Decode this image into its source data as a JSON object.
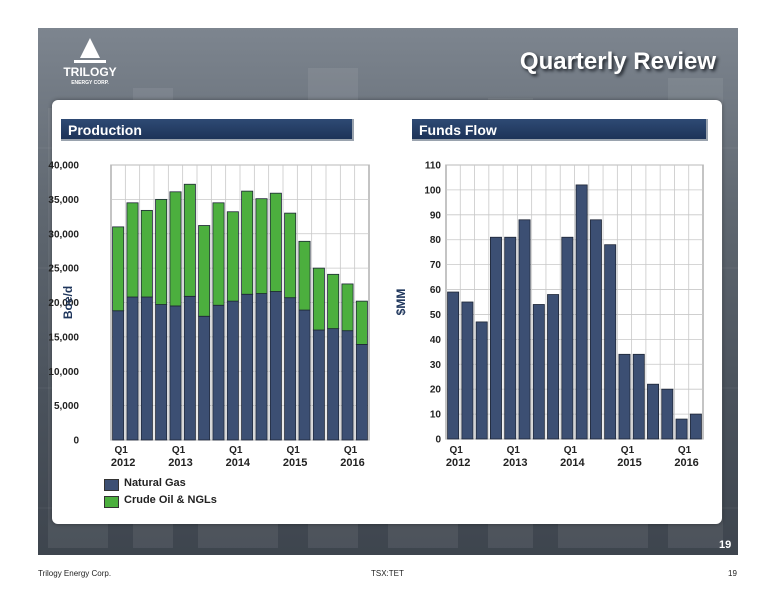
{
  "company": "Trilogy Energy Corp.",
  "logo": {
    "name": "TRILOGY",
    "tagline": "ENERGY CORP."
  },
  "slide_title": "Quarterly Review",
  "slide_number": "19",
  "footer": {
    "left": "Trilogy Energy Corp.",
    "center": "TSX:TET",
    "right": "19"
  },
  "colors": {
    "natural_gas": "#3c4f73",
    "crude_oil_ngls": "#4caf3e",
    "funds_flow": "#3c4f73",
    "header": "#1f365c"
  },
  "chart_data": [
    {
      "type": "bar",
      "stacked": true,
      "title": "Production",
      "ylabel": "Boe/d",
      "ylim": [
        0,
        40000
      ],
      "yticks": [
        0,
        5000,
        10000,
        15000,
        20000,
        25000,
        30000,
        35000,
        40000
      ],
      "ytick_labels": [
        "0",
        "5,000",
        "10,000",
        "15,000",
        "20,000",
        "25,000",
        "30,000",
        "35,000",
        "40,000"
      ],
      "quarter_labels": [
        {
          "index": 0,
          "q": "Q1",
          "year": "2012"
        },
        {
          "index": 4,
          "q": "Q1",
          "year": "2013"
        },
        {
          "index": 8,
          "q": "Q1",
          "year": "2014"
        },
        {
          "index": 12,
          "q": "Q1",
          "year": "2015"
        },
        {
          "index": 16,
          "q": "Q1",
          "year": "2016"
        }
      ],
      "grid": true,
      "legend_position": "bottom-left",
      "series": [
        {
          "name": "Natural Gas",
          "values": [
            18800,
            20800,
            20800,
            19700,
            19500,
            20900,
            18000,
            19600,
            20200,
            21200,
            21300,
            21600,
            20700,
            18900,
            16000,
            16200,
            15900,
            13900
          ]
        },
        {
          "name": "Crude Oil & NGLs",
          "values": [
            12200,
            13700,
            12600,
            15300,
            16600,
            16300,
            13200,
            14900,
            13000,
            15000,
            13800,
            14300,
            12300,
            10000,
            9000,
            7900,
            6800,
            6300
          ]
        }
      ]
    },
    {
      "type": "bar",
      "title": "Funds Flow",
      "ylabel": "$MM",
      "ylim": [
        0,
        110
      ],
      "yticks": [
        0,
        10,
        20,
        30,
        40,
        50,
        60,
        70,
        80,
        90,
        100,
        110
      ],
      "ytick_labels": [
        "0",
        "10",
        "20",
        "30",
        "40",
        "50",
        "60",
        "70",
        "80",
        "90",
        "100",
        "110"
      ],
      "quarter_labels": [
        {
          "index": 0,
          "q": "Q1",
          "year": "2012"
        },
        {
          "index": 4,
          "q": "Q1",
          "year": "2013"
        },
        {
          "index": 8,
          "q": "Q1",
          "year": "2014"
        },
        {
          "index": 12,
          "q": "Q1",
          "year": "2015"
        },
        {
          "index": 16,
          "q": "Q1",
          "year": "2016"
        }
      ],
      "grid": true,
      "values": [
        59,
        55,
        47,
        81,
        81,
        88,
        54,
        58,
        81,
        102,
        88,
        78,
        34,
        34,
        22,
        20,
        8,
        10
      ]
    }
  ]
}
